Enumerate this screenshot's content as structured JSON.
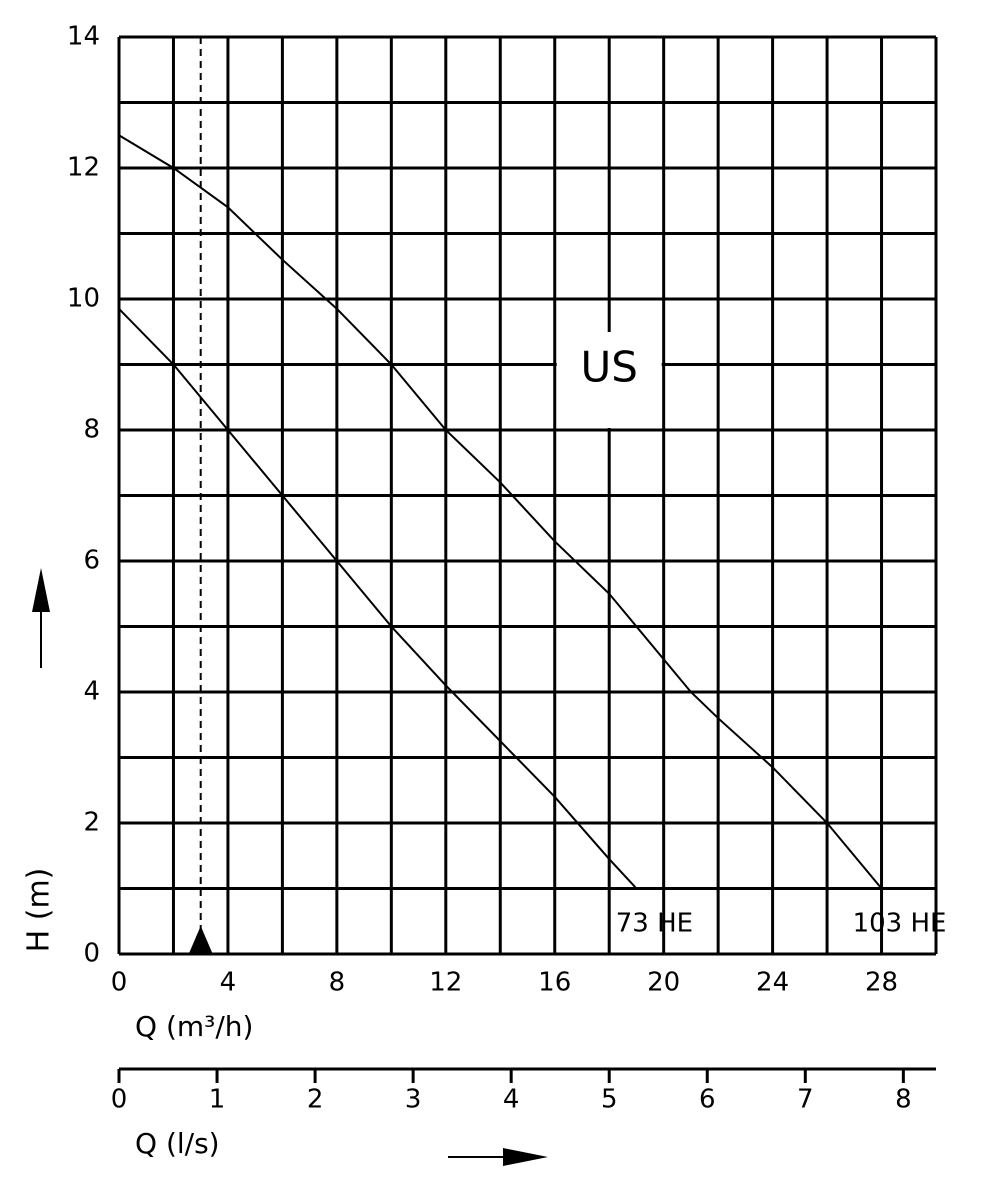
{
  "chart_data": {
    "type": "line",
    "ylabel": "H (m)",
    "xlabel": "Q (m³/h)",
    "x2label": "Q (l/s)",
    "annotation": "US",
    "xlim": [
      0,
      30
    ],
    "ylim": [
      0,
      14
    ],
    "xticks": [
      0,
      4,
      8,
      12,
      16,
      20,
      24,
      28
    ],
    "yticks": [
      0,
      2,
      4,
      6,
      8,
      10,
      12,
      14
    ],
    "xgrid": [
      0,
      2,
      4,
      6,
      8,
      10,
      12,
      14,
      16,
      18,
      20,
      22,
      24,
      26,
      28,
      30
    ],
    "ygrid": [
      0,
      1,
      2,
      3,
      4,
      5,
      6,
      7,
      8,
      9,
      10,
      11,
      12,
      13,
      14
    ],
    "x2lim": [
      0,
      8.333
    ],
    "x2ticks": [
      0,
      1,
      2,
      3,
      4,
      5,
      6,
      7,
      8
    ],
    "marker_x": 3,
    "color": "#000000",
    "series": [
      {
        "name": "73 HE",
        "x": [
          0,
          2,
          4,
          6,
          8,
          10,
          12,
          14,
          16,
          18,
          19
        ],
        "values": [
          9.85,
          9,
          8,
          7,
          6,
          5,
          4.1,
          3.25,
          2.4,
          1.45,
          1.0
        ]
      },
      {
        "name": "103 HE",
        "x": [
          0,
          2,
          4,
          6,
          8,
          10,
          12,
          14,
          16,
          18,
          20,
          21,
          22,
          24,
          26,
          28
        ],
        "values": [
          12.5,
          12,
          11.4,
          10.6,
          9.85,
          9,
          8,
          7.2,
          6.3,
          5.5,
          4.5,
          4.0,
          3.6,
          2.85,
          2,
          1.0
        ]
      }
    ]
  }
}
